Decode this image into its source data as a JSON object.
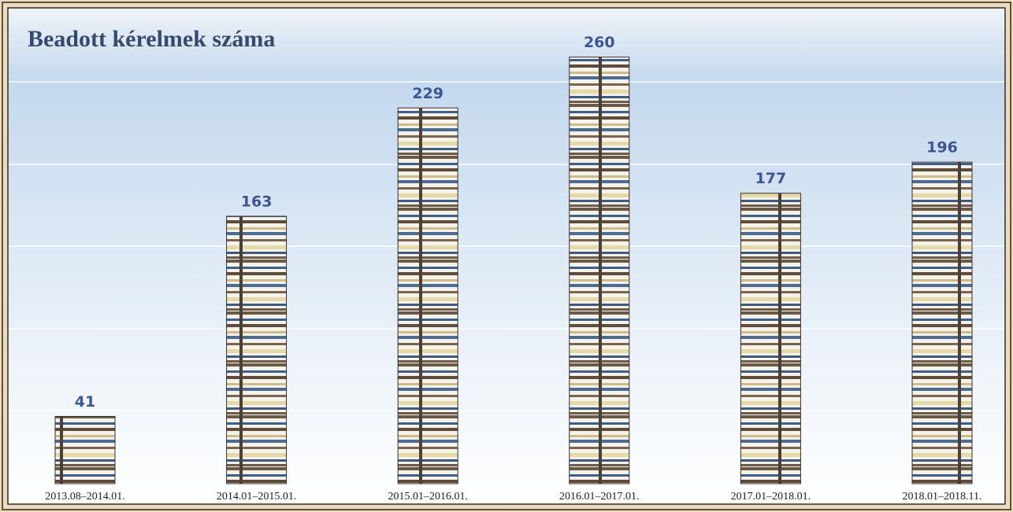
{
  "chart_data": {
    "type": "bar",
    "title": "Beadott kérelmek száma",
    "categories": [
      "2013.08–2014.01.",
      "2014.01–2015.01.",
      "2015.01–2016.01.",
      "2016.01–2017.01.",
      "2017.01–2018.01.",
      "2018.01–2018.11."
    ],
    "values": [
      41,
      163,
      229,
      260,
      177,
      196
    ],
    "ylim": [
      0,
      290
    ]
  }
}
